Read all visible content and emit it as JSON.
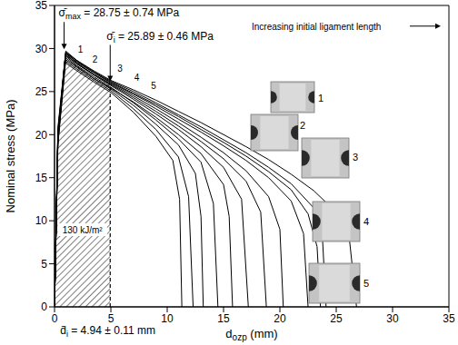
{
  "chart_data": {
    "type": "line",
    "x_label": {
      "text": "d",
      "subscript": "ozp",
      "suffix": "(mm)"
    },
    "y_label": "Nominal stress (MPa)",
    "xlim": [
      0,
      35
    ],
    "xticks": [
      0,
      5,
      10,
      15,
      20,
      25,
      30,
      35
    ],
    "ylim": [
      0,
      35
    ],
    "yticks": [
      0,
      5,
      10,
      15,
      20,
      25,
      30,
      35
    ],
    "grid": false,
    "series": [
      {
        "color": "#000000",
        "x": [
          0,
          0.3,
          0.9,
          2,
          3.5,
          5,
          7,
          9,
          10.5,
          11.1,
          11.3
        ],
        "values": [
          0,
          19,
          28.4,
          27.4,
          26.1,
          24.9,
          22.6,
          19.8,
          17,
          12.5,
          0
        ]
      },
      {
        "color": "#000000",
        "x": [
          0,
          0.3,
          0.9,
          2,
          3.5,
          5,
          7,
          9,
          11,
          11.9,
          12.3
        ],
        "values": [
          0,
          19.5,
          28.6,
          27.6,
          26.3,
          25.1,
          23,
          20.6,
          17.4,
          12.8,
          0
        ]
      },
      {
        "color": "#000000",
        "x": [
          0,
          0.3,
          1,
          2,
          3.5,
          5,
          7,
          9,
          11,
          12.5,
          13,
          13.2
        ],
        "values": [
          0,
          19.2,
          28.9,
          27.9,
          26.5,
          25.3,
          23.4,
          21.2,
          18.8,
          15.5,
          10.5,
          0
        ]
      },
      {
        "color": "#000000",
        "x": [
          0,
          0.3,
          1,
          2,
          3.5,
          5,
          7,
          9,
          11,
          13,
          14.1,
          14.5
        ],
        "values": [
          0,
          20,
          29.1,
          28,
          26.7,
          25.5,
          23.7,
          21.7,
          19.5,
          16.8,
          12,
          0
        ]
      },
      {
        "color": "#000000",
        "x": [
          0,
          0.3,
          1,
          2,
          3.5,
          5,
          7,
          9,
          11,
          13,
          15,
          15.5,
          15.8
        ],
        "values": [
          0,
          18.8,
          28.7,
          27.8,
          26.5,
          25.4,
          23.8,
          22,
          20,
          17.8,
          14.2,
          10.5,
          0
        ]
      },
      {
        "color": "#000000",
        "x": [
          0,
          0.3,
          1,
          2,
          3.5,
          5,
          7,
          9,
          11,
          13,
          15,
          16.6,
          17.2
        ],
        "values": [
          0,
          19.6,
          29.3,
          28.2,
          26.9,
          25.7,
          24.1,
          22.4,
          20.6,
          18.6,
          16.2,
          12.5,
          0
        ]
      },
      {
        "color": "#000000",
        "x": [
          0,
          0.3,
          1,
          2,
          3.5,
          5,
          7,
          9,
          11,
          13,
          15,
          17,
          18.3,
          18.8
        ],
        "values": [
          0,
          20.2,
          29.5,
          28.3,
          27,
          25.8,
          24.3,
          22.7,
          21,
          19.2,
          17.2,
          14.6,
          11,
          0
        ]
      },
      {
        "color": "#000000",
        "x": [
          0,
          0.3,
          1,
          2,
          3.5,
          5,
          7,
          9,
          11,
          13,
          15,
          17,
          19,
          20,
          20.3
        ],
        "values": [
          0,
          19.4,
          29.2,
          28.2,
          27,
          25.9,
          24.5,
          23,
          21.4,
          19.7,
          17.9,
          15.8,
          12.8,
          9,
          0
        ]
      },
      {
        "color": "#000000",
        "x": [
          0,
          0.3,
          1,
          2,
          3.5,
          5,
          7,
          9,
          11,
          13,
          15,
          17,
          19,
          21,
          22.1,
          22.5
        ],
        "values": [
          0,
          20.5,
          29.6,
          28.5,
          27.2,
          26,
          24.7,
          23.3,
          21.8,
          20.3,
          18.7,
          17,
          15,
          12.3,
          8.5,
          0
        ]
      },
      {
        "color": "#000000",
        "x": [
          0,
          0.3,
          1,
          2,
          3.5,
          5,
          7,
          9,
          11,
          13,
          15,
          17,
          19,
          21,
          22.5,
          23.3,
          23.6
        ],
        "values": [
          0,
          19.8,
          29.4,
          28.4,
          27.2,
          26.1,
          24.8,
          23.5,
          22.1,
          20.6,
          19.1,
          17.5,
          15.7,
          13.6,
          10.8,
          7,
          0
        ]
      },
      {
        "color": "#000000",
        "x": [
          0,
          0.3,
          1,
          2,
          3.5,
          5,
          7,
          9,
          11,
          13,
          15,
          17,
          19,
          21,
          23,
          23.8,
          24.1
        ],
        "values": [
          0,
          20.8,
          29.7,
          28.6,
          27.3,
          26.2,
          25,
          23.7,
          22.3,
          20.9,
          19.4,
          17.9,
          16.2,
          14.3,
          11.5,
          7.5,
          0
        ]
      },
      {
        "color": "#000000",
        "x": [
          0,
          0.3,
          1,
          2,
          3.5,
          5,
          7,
          9,
          11,
          13,
          15,
          17,
          19,
          21,
          23,
          25,
          26.2,
          26.8
        ],
        "values": [
          0,
          20.3,
          29.5,
          28.6,
          27.4,
          26.3,
          25.2,
          24,
          22.7,
          21.4,
          20,
          18.6,
          17.1,
          15.4,
          13.5,
          11,
          7.5,
          0
        ]
      }
    ],
    "hatched_area": {
      "label": "130 kJ/m²",
      "color": "#000000",
      "x": [
        0,
        0.3,
        1,
        2,
        3.5,
        4.94
      ],
      "values": [
        0,
        19.8,
        28.75,
        27.9,
        26.7,
        25.89
      ]
    },
    "sigma_max": {
      "symbol": "σ̄",
      "subscript": "max",
      "text": "= 28.75 ± 0.74 MPa",
      "x": 0.85,
      "y": 29.7
    },
    "sigma_i": {
      "symbol": "σ̄",
      "subscript": "i",
      "text": "= 25.89 ± 0.46 MPa",
      "x": 4.94,
      "y": 25.89
    },
    "d_i": {
      "symbol": "d̄",
      "subscript": "i",
      "text": "= 4.94 ± 0.11 mm",
      "x": 4.94,
      "y": 0
    },
    "trend_label": {
      "text": "Increasing initial ligament length",
      "x": 17.5,
      "y": 32.6
    },
    "curve_labels": [
      {
        "text": "1",
        "x": 2.3,
        "y": 29.8
      },
      {
        "text": "2",
        "x": 3.6,
        "y": 28.7
      },
      {
        "text": "3",
        "x": 5.8,
        "y": 27.6
      },
      {
        "text": "4",
        "x": 7.3,
        "y": 26.6
      },
      {
        "text": "5",
        "x": 8.8,
        "y": 25.6
      }
    ],
    "photo_labels": [
      "1",
      "2",
      "3",
      "4",
      "5"
    ]
  }
}
